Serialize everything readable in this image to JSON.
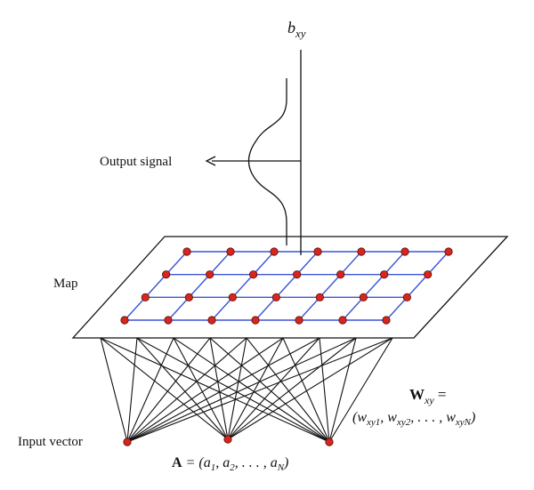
{
  "labels": {
    "bxy_base": "b",
    "bxy_sub": "xy",
    "output_signal": "Output signal",
    "map": "Map",
    "input_vector": "Input vector",
    "wxy_line1_W": "W",
    "wxy_line1_sub": "xy",
    "wxy_line1_eq": " =",
    "wxy_line2_open": "(w",
    "wxy_line2_s1": "xy1",
    "wxy_line2_c1": ", w",
    "wxy_line2_s2": "xy2",
    "wxy_line2_c2": ", . . . , w",
    "wxy_line2_s3": "xyN",
    "wxy_line2_close": ")",
    "A_bold": "A",
    "A_eq": " = (a",
    "A_s1": "1",
    "A_c1": ", a",
    "A_s2": "2",
    "A_c2": ", . . . , a",
    "A_s3": "N",
    "A_close": ")"
  },
  "colors": {
    "node_fill": "#d7261e",
    "grid_line": "#3a55d6",
    "stroke": "#111111"
  },
  "grid": {
    "rows": 4,
    "cols": 7
  },
  "input_nodes": 3
}
